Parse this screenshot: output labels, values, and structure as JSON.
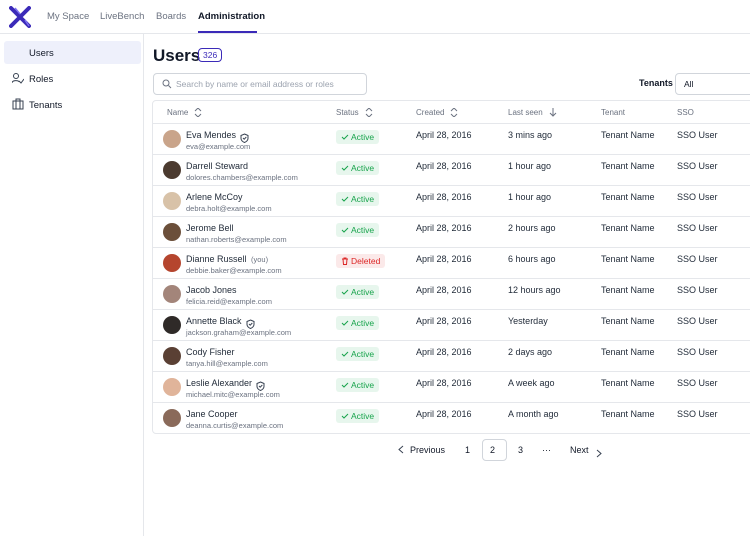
{
  "nav": {
    "items": [
      "My Space",
      "LiveBench",
      "Boards",
      "Administration"
    ],
    "active": 3
  },
  "sidebar": {
    "items": [
      "Users",
      "Roles",
      "Tenants"
    ],
    "active": 0
  },
  "header": {
    "title": "Users",
    "count": "326",
    "search_placeholder": "Search by name or email address or roles",
    "tenants_label": "Tenants",
    "tenants_value": "All"
  },
  "table": {
    "columns": [
      "Name",
      "Status",
      "Created",
      "Last seen",
      "Tenant",
      "SSO"
    ],
    "rows": [
      {
        "name": "Eva Mendes",
        "email": "eva@example.com",
        "verified": true,
        "status": "Active",
        "status_color": "#16a34a",
        "created": "April 28, 2016",
        "last_seen": "3 mins ago",
        "tenant": "Tenant Name",
        "sso": "SSO User"
      },
      {
        "name": "Darrell Steward",
        "email": "dolores.chambers@example.com",
        "status": "Active",
        "status_color": "#16a34a",
        "created": "April 28, 2016",
        "last_seen": "1 hour ago",
        "tenant": "Tenant Name",
        "sso": "SSO User"
      },
      {
        "name": "Arlene McCoy",
        "email": "debra.holt@example.com",
        "status": "Active",
        "status_color": "#16a34a",
        "created": "April 28, 2016",
        "last_seen": "1 hour ago",
        "tenant": "Tenant Name",
        "sso": "SSO User"
      },
      {
        "name": "Jerome Bell",
        "email": "nathan.roberts@example.com",
        "status": "Active",
        "status_color": "#16a34a",
        "created": "April 28, 2016",
        "last_seen": "2 hours ago",
        "tenant": "Tenant Name",
        "sso": "SSO User"
      },
      {
        "name": "Dianne Russell",
        "you": "(you)",
        "email": "debbie.baker@example.com",
        "status": "Deleted",
        "status_color": "#dc2626",
        "created": "April 28, 2016",
        "last_seen": "6 hours ago",
        "tenant": "Tenant Name",
        "sso": "SSO User"
      },
      {
        "name": "Jacob Jones",
        "email": "felicia.reid@example.com",
        "status": "Active",
        "status_color": "#16a34a",
        "created": "April 28, 2016",
        "last_seen": "12 hours ago",
        "tenant": "Tenant Name",
        "sso": "SSO User"
      },
      {
        "name": "Annette Black",
        "email": "jackson.graham@example.com",
        "verified": true,
        "status": "Active",
        "status_color": "#16a34a",
        "created": "April 28, 2016",
        "last_seen": "Yesterday",
        "tenant": "Tenant Name",
        "sso": "SSO User"
      },
      {
        "name": "Cody Fisher",
        "email": "tanya.hill@example.com",
        "status": "Active",
        "status_color": "#16a34a",
        "created": "April 28, 2016",
        "last_seen": "2 days ago",
        "tenant": "Tenant Name",
        "sso": "SSO User"
      },
      {
        "name": "Leslie Alexander",
        "email": "michael.mitc@example.com",
        "verified": true,
        "status": "Active",
        "status_color": "#16a34a",
        "created": "April 28, 2016",
        "last_seen": "A week ago",
        "tenant": "Tenant Name",
        "sso": "SSO User"
      },
      {
        "name": "Jane Cooper",
        "email": "deanna.curtis@example.com",
        "status": "Active",
        "status_color": "#16a34a",
        "created": "April 28, 2016",
        "last_seen": "A month ago",
        "tenant": "Tenant Name",
        "sso": "SSO User"
      }
    ]
  },
  "pagination": {
    "previous": "Previous",
    "pages": [
      "1",
      "2",
      "3",
      "···"
    ],
    "current": 1,
    "next": "Next"
  }
}
